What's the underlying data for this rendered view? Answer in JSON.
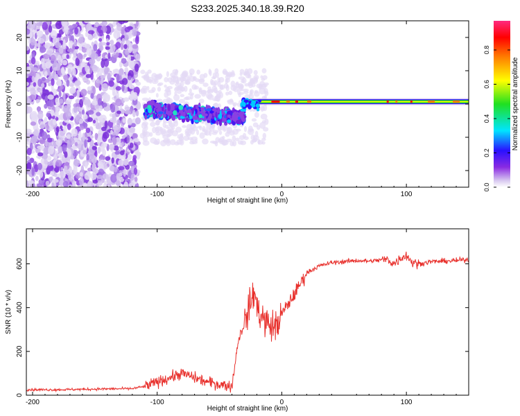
{
  "title": "S233.2025.340.18.39.R20",
  "chart_data": [
    {
      "type": "heatmap",
      "name": "spectrogram",
      "xlabel": "Height of straight line (km)",
      "ylabel": "Frequency (Hz)",
      "xlim": [
        -205,
        150
      ],
      "ylim": [
        -25,
        25
      ],
      "xticks": [
        -200,
        -100,
        0,
        100
      ],
      "yticks": [
        -20,
        -10,
        0,
        10,
        20
      ],
      "colorbar": {
        "label": "Normalized spectral amplitude",
        "range": [
          0,
          0.97
        ],
        "ticks": [
          0.0,
          0.2,
          0.4,
          0.6,
          0.8
        ],
        "tick_labels": [
          "0.0",
          "0.2",
          "0.4",
          "0.6",
          "0.8"
        ],
        "colors": [
          "#e0d4f4",
          "#8a2be2",
          "#3010ff",
          "#00e5ff",
          "#20e020",
          "#ffff00",
          "#ff8000",
          "#ff0000",
          "#ff2080"
        ]
      },
      "features": {
        "scatter_region_km": [
          -205,
          -115
        ],
        "cluster_region_km": [
          -110,
          -30
        ],
        "cluster_freq_range_hz": [
          -9,
          4
        ],
        "carrier_start_km": -30,
        "carrier_freq_hz": 0.7,
        "carrier_end_km": 150
      }
    },
    {
      "type": "line",
      "name": "snr",
      "xlabel": "Height of straight line (km)",
      "ylabel": "SNR (10 * v/v)",
      "xlim": [
        -205,
        150
      ],
      "ylim": [
        0,
        760
      ],
      "xticks": [
        -200,
        -100,
        0,
        100
      ],
      "yticks": [
        0,
        200,
        400,
        600
      ],
      "series": [
        {
          "name": "SNR",
          "color": "#e8302c",
          "x": [
            -205,
            -180,
            -150,
            -120,
            -110,
            -100,
            -90,
            -80,
            -70,
            -60,
            -50,
            -45,
            -40,
            -35,
            -30,
            -25,
            -22,
            -20,
            -15,
            -10,
            -5,
            0,
            10,
            20,
            30,
            40,
            50,
            60,
            70,
            80,
            85,
            90,
            95,
            100,
            105,
            110,
            120,
            130,
            140,
            150
          ],
          "y": [
            25,
            25,
            28,
            30,
            40,
            60,
            80,
            100,
            80,
            60,
            50,
            45,
            40,
            250,
            330,
            420,
            480,
            400,
            350,
            320,
            310,
            370,
            460,
            560,
            590,
            605,
            610,
            615,
            612,
            618,
            620,
            600,
            625,
            640,
            605,
            600,
            610,
            612,
            615,
            620
          ]
        }
      ]
    }
  ]
}
